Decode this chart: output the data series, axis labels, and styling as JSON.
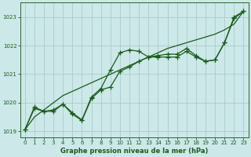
{
  "background_color": "#cce8e8",
  "grid_color": "#aacccc",
  "line_color": "#1a5c1a",
  "title": "Graphe pression niveau de la mer (hPa)",
  "ylim": [
    1018.8,
    1023.5
  ],
  "xlim": [
    -0.5,
    23.5
  ],
  "yticks": [
    1019,
    1020,
    1021,
    1022,
    1023
  ],
  "xticks": [
    0,
    1,
    2,
    3,
    4,
    5,
    6,
    7,
    8,
    9,
    10,
    11,
    12,
    13,
    14,
    15,
    16,
    17,
    18,
    19,
    20,
    21,
    22,
    23
  ],
  "series": {
    "line_straight": [
      1019.05,
      1019.5,
      1019.75,
      1020.0,
      1020.25,
      1020.4,
      1020.55,
      1020.7,
      1020.85,
      1021.0,
      1021.15,
      1021.3,
      1021.45,
      1021.6,
      1021.75,
      1021.9,
      1022.0,
      1022.1,
      1022.2,
      1022.3,
      1022.4,
      1022.55,
      1022.75,
      1023.2
    ],
    "line_upper": [
      1019.05,
      1019.8,
      1019.7,
      1019.75,
      1019.95,
      1019.65,
      1019.4,
      1020.2,
      1020.5,
      1021.15,
      1021.75,
      1021.85,
      1021.8,
      1021.6,
      1021.65,
      1021.7,
      1021.7,
      1021.9,
      1021.65,
      1021.45,
      1021.5,
      1022.1,
      1023.0,
      1023.2
    ],
    "line_lower": [
      1019.05,
      1019.85,
      1019.7,
      1019.7,
      1019.95,
      1019.6,
      1019.38,
      1020.15,
      1020.45,
      1020.55,
      1021.1,
      1021.25,
      1021.45,
      1021.6,
      1021.6,
      1021.6,
      1021.6,
      1021.8,
      1021.6,
      1021.45,
      1021.5,
      1022.1,
      1022.95,
      1023.2
    ]
  }
}
